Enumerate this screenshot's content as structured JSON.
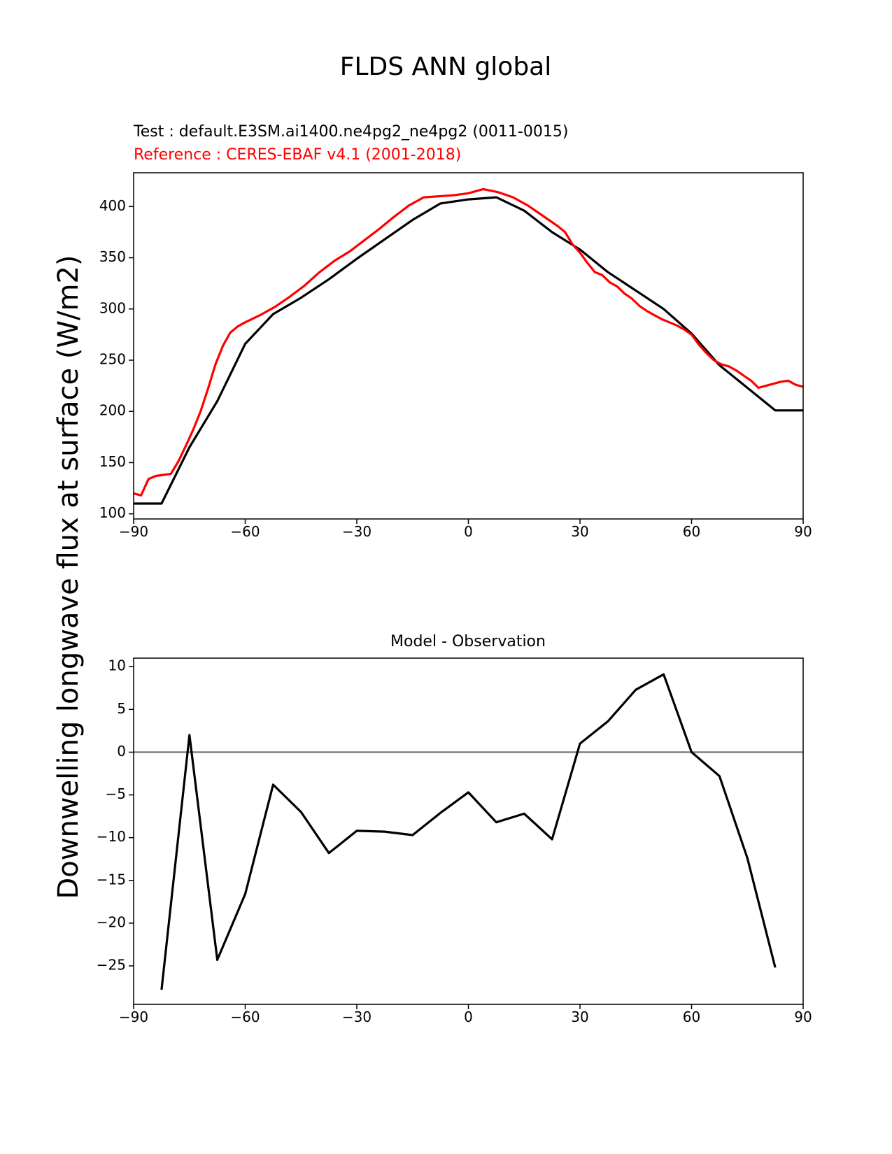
{
  "figure": {
    "title": "FLDS ANN global",
    "ylabel": "Downwelling longwave flux at surface (W/m2)"
  },
  "chart_data": [
    {
      "type": "line",
      "test_label": "Test : default.E3SM.ai1400.ne4pg2_ne4pg2 (0011-0015)",
      "ref_label": "Reference : CERES-EBAF v4.1 (2001-2018)",
      "xlim": [
        -90,
        90
      ],
      "ylim": [
        95,
        433
      ],
      "xticks": [
        -90,
        -60,
        -30,
        0,
        30,
        60,
        90
      ],
      "yticks": [
        100,
        150,
        200,
        250,
        300,
        350,
        400
      ],
      "grid": false,
      "series": [
        {
          "name": "Test : default.E3SM.ai1400.ne4pg2_ne4pg2 (0011-0015)",
          "color": "#000000",
          "x": [
            -90,
            -82.5,
            -75,
            -67.5,
            -60,
            -52.5,
            -45,
            -37.5,
            -30,
            -22.5,
            -15,
            -7.5,
            0,
            7.5,
            15,
            22.5,
            30,
            37.5,
            45,
            52.5,
            60,
            67.5,
            75,
            82.5,
            90
          ],
          "y": [
            110,
            110,
            165,
            210,
            266,
            295,
            311,
            329,
            349,
            368,
            387,
            403,
            407,
            409,
            396,
            375,
            358,
            336,
            318,
            300,
            276,
            245,
            223,
            201,
            201
          ]
        },
        {
          "name": "Reference : CERES-EBAF v4.1 (2001-2018)",
          "color": "#ff0000",
          "x": [
            -90,
            -88,
            -86,
            -84,
            -82,
            -80,
            -78,
            -76,
            -74,
            -72,
            -70,
            -68,
            -66,
            -64,
            -62,
            -60,
            -56,
            -52,
            -48,
            -44,
            -40,
            -36,
            -32,
            -28,
            -24,
            -20,
            -16,
            -12,
            -8,
            -4,
            0,
            4,
            8,
            12,
            16,
            20,
            24,
            26,
            28,
            30,
            32,
            34,
            36,
            38,
            40,
            42,
            44,
            46,
            48,
            50,
            52,
            54,
            56,
            58,
            60,
            62,
            64,
            66,
            68,
            70,
            72,
            74,
            76,
            78,
            80,
            82,
            84,
            86,
            88,
            90
          ],
          "y": [
            120,
            118,
            134,
            137,
            138,
            139,
            151,
            166,
            182,
            200,
            222,
            246,
            264,
            277,
            283,
            287,
            294,
            302,
            312,
            323,
            336,
            347,
            356,
            367,
            378,
            390,
            401,
            409,
            410,
            411,
            413,
            417,
            414,
            409,
            401,
            391,
            381,
            375,
            363,
            355,
            345,
            336,
            333,
            326,
            322,
            315,
            310,
            303,
            298,
            294,
            290,
            287,
            284,
            280,
            275,
            265,
            257,
            250,
            246,
            244,
            240,
            235,
            230,
            223,
            225,
            227,
            229,
            230,
            226,
            224
          ]
        }
      ]
    },
    {
      "type": "line",
      "title": "Model - Observation",
      "xlim": [
        -90,
        90
      ],
      "ylim": [
        -29.5,
        11
      ],
      "xticks": [
        -90,
        -60,
        -30,
        0,
        30,
        60,
        90
      ],
      "yticks": [
        -25,
        -20,
        -15,
        -10,
        -5,
        0,
        5,
        10
      ],
      "grid": false,
      "zero_line": {
        "y": 0,
        "color": "#808080"
      },
      "series": [
        {
          "color": "#000000",
          "x": [
            -82.5,
            -75,
            -67.5,
            -60,
            -52.5,
            -45,
            -37.5,
            -30,
            -22.5,
            -15,
            -7.5,
            0,
            7.5,
            15,
            22.5,
            30,
            37.5,
            45,
            52.5,
            60,
            67.5,
            75,
            82.5
          ],
          "y": [
            -27.8,
            2.0,
            -24.3,
            -16.6,
            -3.8,
            -7.0,
            -11.8,
            -9.2,
            -9.3,
            -9.7,
            -7.1,
            -4.7,
            -8.2,
            -7.2,
            -10.2,
            1.0,
            3.6,
            7.3,
            9.1,
            0.0,
            -2.8,
            -12.4,
            -25.2
          ]
        }
      ]
    }
  ]
}
